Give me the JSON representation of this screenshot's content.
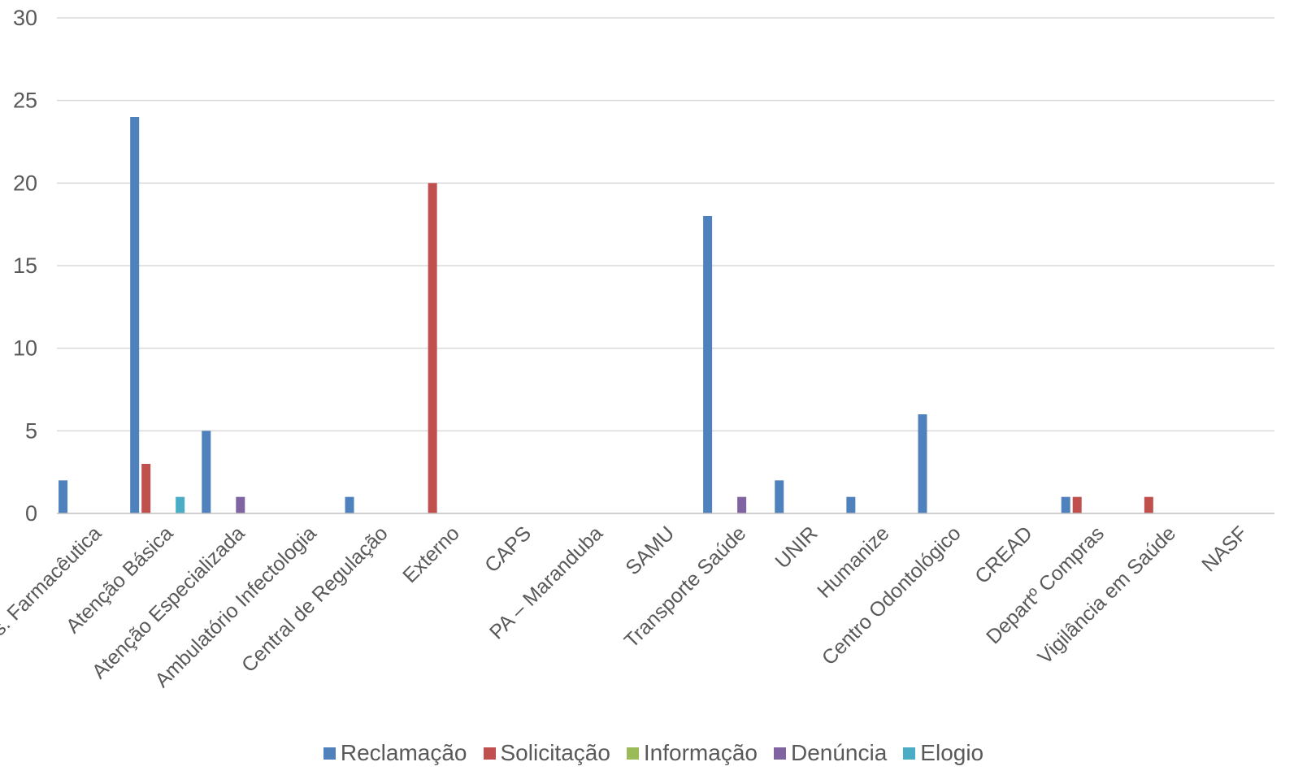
{
  "chart_data": {
    "type": "bar",
    "title": "",
    "xlabel": "",
    "ylabel": "",
    "ylim": [
      0,
      30
    ],
    "yticks": [
      0,
      5,
      10,
      15,
      20,
      25,
      30
    ],
    "grid": true,
    "legend_position": "bottom",
    "categories": [
      "Ass. Farmacêutica",
      "Atenção Básica",
      "Atenção Especializada",
      "Ambulatório Infectologia",
      "Central de Regulação",
      "Externo",
      "CAPS",
      "PA – Maranduba",
      "SAMU",
      "Transporte Saúde",
      "UNIR",
      "Humanize",
      "Centro Odontológico",
      "CREAD",
      "Departº Compras",
      "Vigilância em Saúde",
      "NASF"
    ],
    "series": [
      {
        "name": "Reclamação",
        "color": "#4f81bd",
        "values": [
          2,
          24,
          5,
          0,
          1,
          0,
          0,
          0,
          0,
          18,
          2,
          1,
          6,
          0,
          1,
          0,
          0
        ]
      },
      {
        "name": "Solicitação",
        "color": "#c0504d",
        "values": [
          0,
          3,
          0,
          0,
          0,
          20,
          0,
          0,
          0,
          0,
          0,
          0,
          0,
          0,
          1,
          1,
          0
        ]
      },
      {
        "name": "Informação",
        "color": "#9bbb59",
        "values": [
          0,
          0,
          0,
          0,
          0,
          0,
          0,
          0,
          0,
          0,
          0,
          0,
          0,
          0,
          0,
          0,
          0
        ]
      },
      {
        "name": "Denúncia",
        "color": "#8064a2",
        "values": [
          0,
          0,
          1,
          0,
          0,
          0,
          0,
          0,
          0,
          1,
          0,
          0,
          0,
          0,
          0,
          0,
          0
        ]
      },
      {
        "name": "Elogio",
        "color": "#4bacc6",
        "values": [
          0,
          1,
          0,
          0,
          0,
          0,
          0,
          0,
          0,
          0,
          0,
          0,
          0,
          0,
          0,
          0,
          0
        ]
      }
    ]
  }
}
